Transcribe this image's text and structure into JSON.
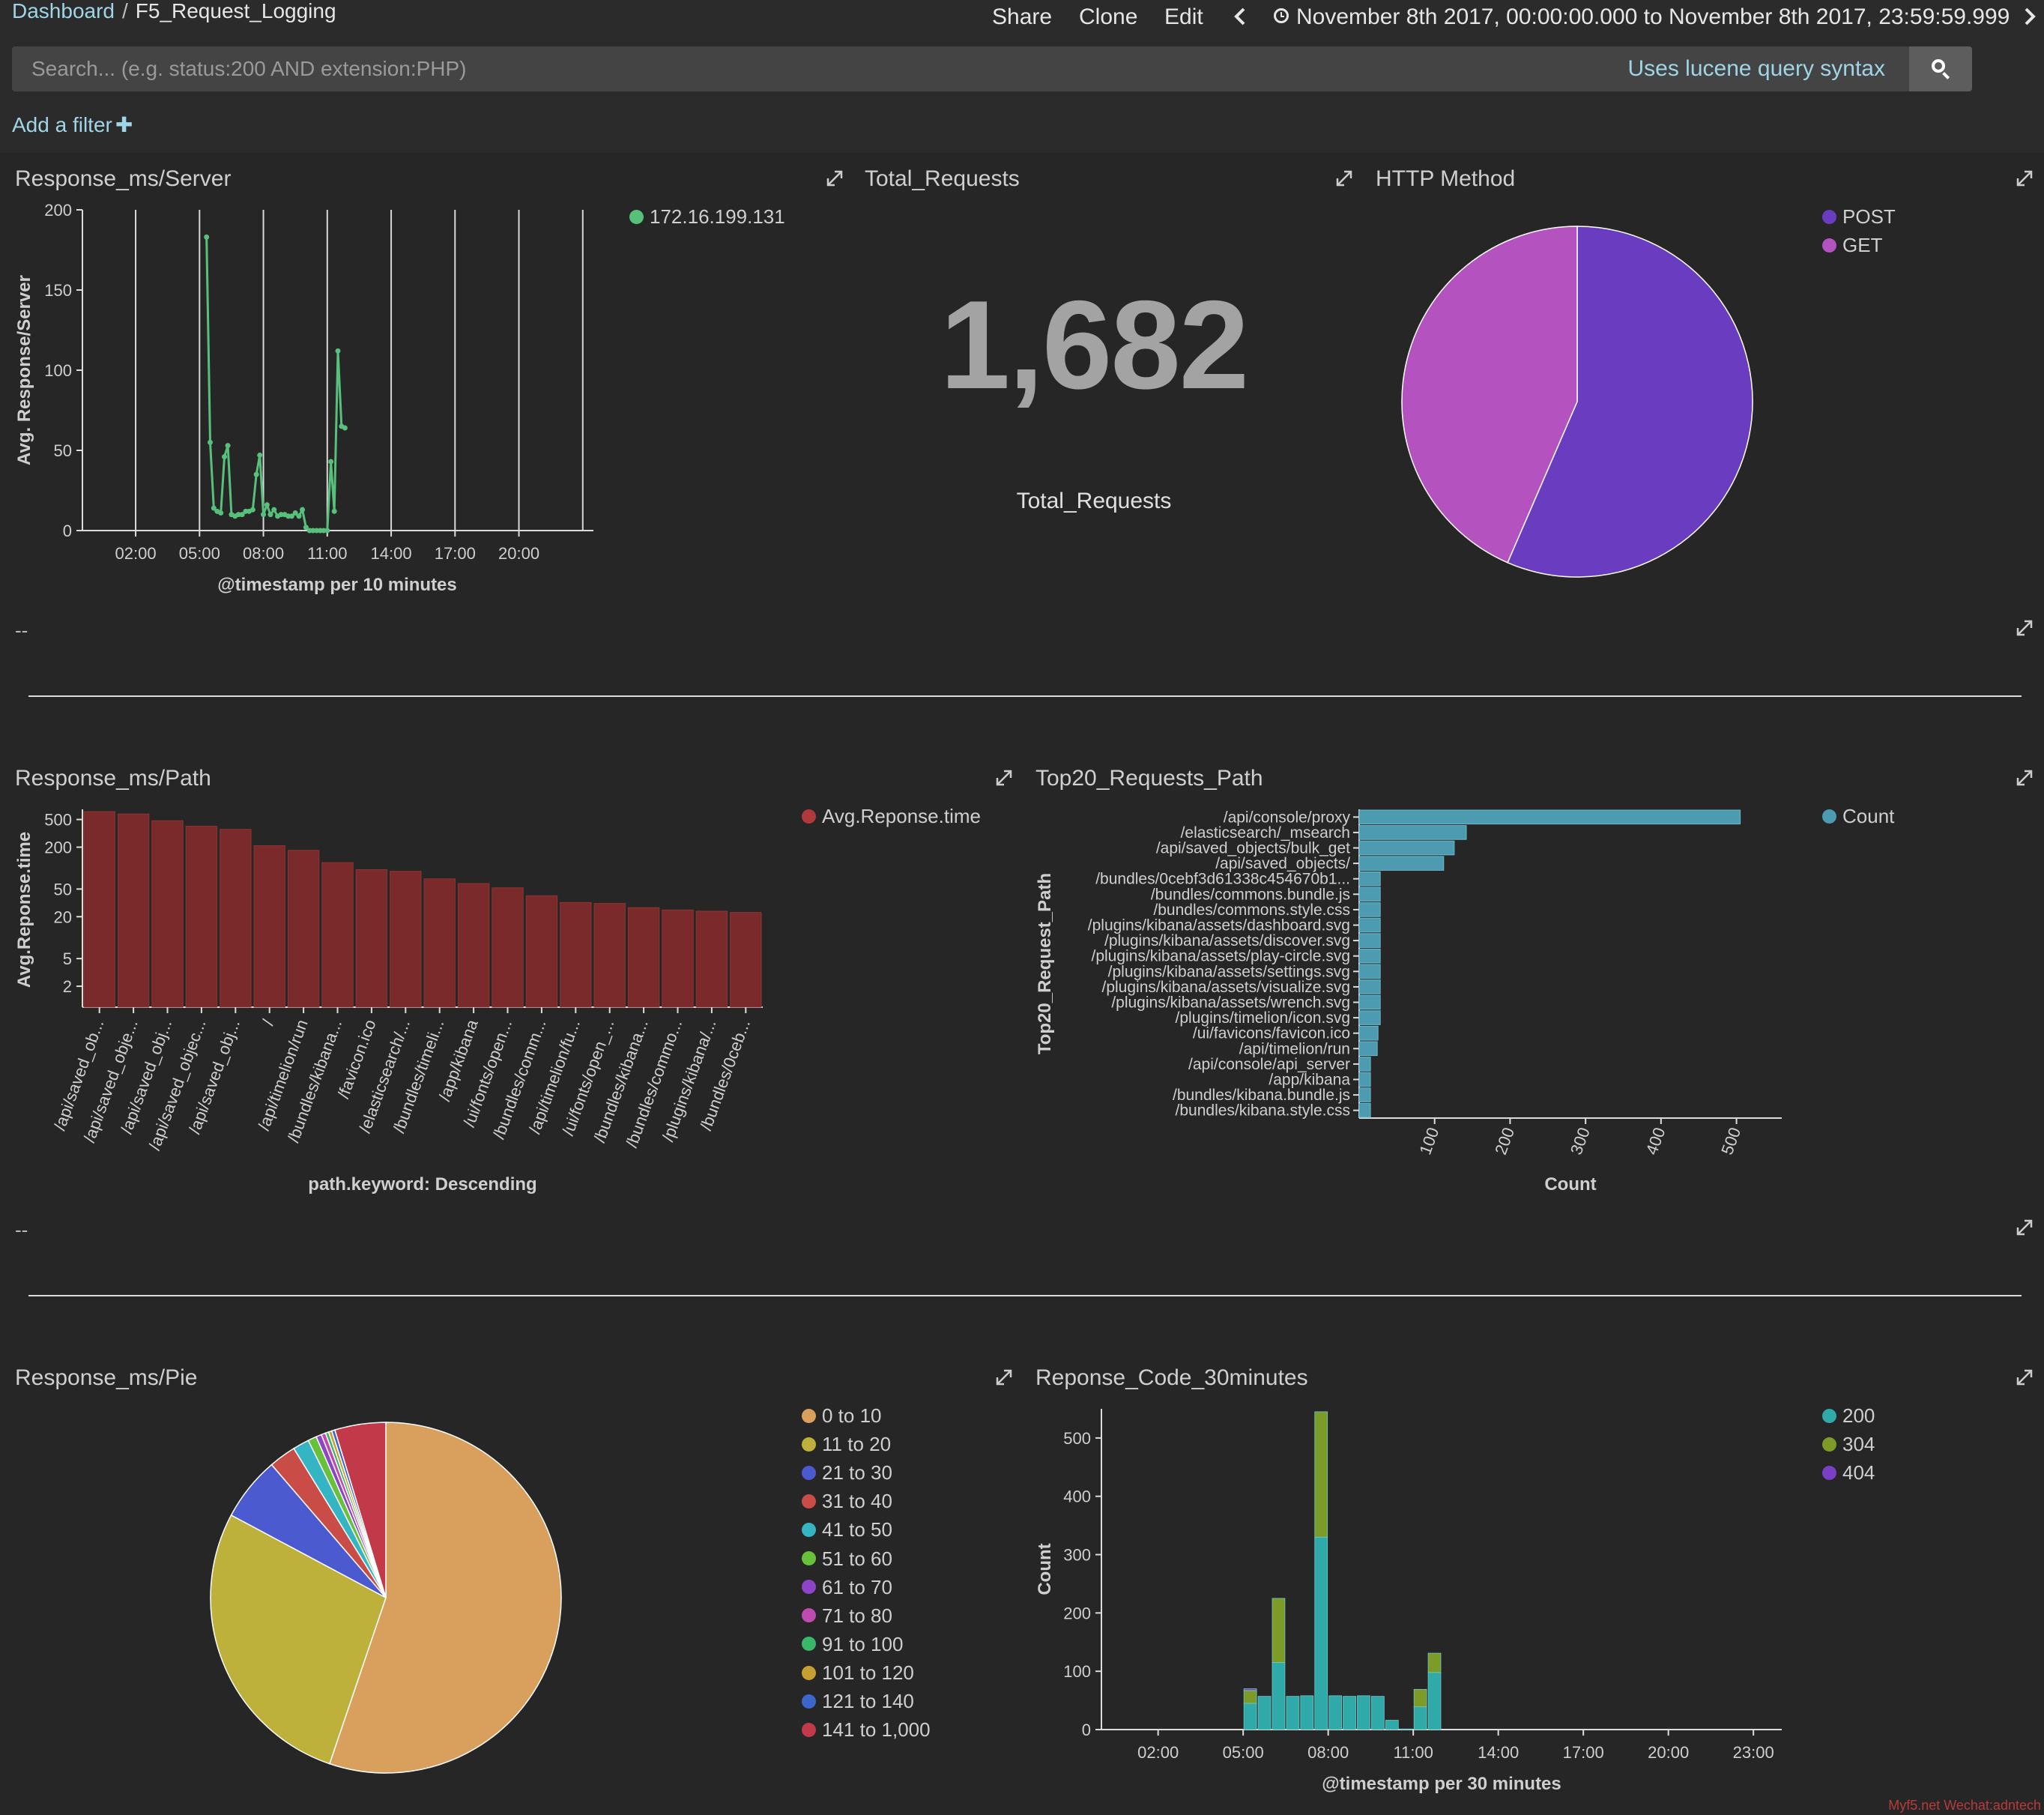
{
  "breadcrumb": {
    "root": "Dashboard",
    "current": "F5_Request_Logging"
  },
  "nav": {
    "share": "Share",
    "clone": "Clone",
    "edit": "Edit",
    "time_range": "November 8th 2017, 00:00:00.000 to November 8th 2017, 23:59:59.999"
  },
  "search": {
    "placeholder": "Search... (e.g. status:200 AND extension:PHP)",
    "syntax_link": "Uses lucene query syntax"
  },
  "filter": {
    "add_label": "Add a filter"
  },
  "panels": {
    "server": {
      "title": "Response_ms/Server",
      "footer": "--"
    },
    "total": {
      "title": "Total_Requests",
      "value": "1,682",
      "label": "Total_Requests"
    },
    "method": {
      "title": "HTTP Method"
    },
    "path": {
      "title": "Response_ms/Path",
      "footer": "--"
    },
    "top20": {
      "title": "Top20_Requests_Path"
    },
    "pie": {
      "title": "Response_ms/Pie"
    },
    "code": {
      "title": "Reponse_Code_30minutes"
    }
  },
  "chart_data": [
    {
      "id": "server",
      "type": "line",
      "xlabel": "@timestamp per 10 minutes",
      "ylabel": "Avg. Response/Server",
      "ylim": [
        0,
        200
      ],
      "yticks": [
        0,
        50,
        100,
        150,
        200
      ],
      "xticks": [
        "02:00",
        "05:00",
        "08:00",
        "11:00",
        "14:00",
        "17:00",
        "20:00"
      ],
      "grid": "vertical",
      "legend_position": "top-right",
      "series": [
        {
          "name": "172.16.199.131",
          "color": "#57c17b",
          "x": [
            5.33,
            5.5,
            5.67,
            5.83,
            6.0,
            6.17,
            6.33,
            6.5,
            6.67,
            6.83,
            7.0,
            7.17,
            7.33,
            7.5,
            7.67,
            7.83,
            8.0,
            8.17,
            8.33,
            8.5,
            8.67,
            8.83,
            9.0,
            9.17,
            9.33,
            9.5,
            9.67,
            9.83,
            10.0,
            10.17,
            10.33,
            10.5,
            10.67,
            10.83,
            11.0,
            11.17,
            11.33,
            11.5,
            11.67,
            11.83
          ],
          "y": [
            183,
            55,
            14,
            12,
            11,
            46,
            53,
            10,
            9,
            10,
            10,
            12,
            12,
            13,
            35,
            47,
            10,
            16,
            10,
            13,
            9,
            10,
            10,
            9,
            9,
            11,
            9,
            13,
            2,
            0,
            0,
            0,
            0,
            0,
            0,
            43,
            12,
            112,
            65,
            64
          ]
        }
      ]
    },
    {
      "id": "method",
      "type": "pie",
      "legend_position": "top-right",
      "labels": [
        "POST",
        "GET"
      ],
      "values": [
        56.5,
        43.5
      ],
      "colors": [
        "#6a3cbf",
        "#b452c0"
      ]
    },
    {
      "id": "path",
      "type": "bar",
      "scale": "log",
      "xlabel": "path.keyword: Descending",
      "ylabel": "Avg.Reponse.time",
      "ylim": [
        1,
        700
      ],
      "yticks": [
        2,
        5,
        20,
        50,
        200,
        500
      ],
      "categories": [
        "/api/saved_ob...",
        "/api/saved_obje...",
        "/api/saved_obj...",
        "/api/saved_objec...",
        "/api/saved_obj...",
        "/",
        "/api/timelion/run",
        "/bundles/kibana...",
        "/favicon.ico",
        "/elasticsearch/...",
        "/bundles/timeli...",
        "/app/kibana",
        "/ui/fonts/open...",
        "/bundles/comm...",
        "/api/timelion/fu...",
        "/ui/fonts/open_...",
        "/bundles/kibana...",
        "/bundles/commo...",
        "/plugins/kibana/...",
        "/bundles/0ceb..."
      ],
      "series": [
        {
          "name": "Avg.Reponse.time",
          "color": "#7a2a2a",
          "values": [
            650,
            600,
            480,
            400,
            360,
            210,
            180,
            120,
            95,
            90,
            70,
            60,
            52,
            40,
            32,
            31,
            27,
            25,
            24,
            23
          ]
        }
      ]
    },
    {
      "id": "top20",
      "type": "bar",
      "orientation": "horizontal",
      "xlabel": "Count",
      "ylabel": "Top20_Request_Path",
      "xlim": [
        0,
        560
      ],
      "xticks": [
        100,
        200,
        300,
        400,
        500
      ],
      "categories": [
        "/api/console/proxy",
        "/elasticsearch/_msearch",
        "/api/saved_objects/bulk_get",
        "/api/saved_objects/",
        "/bundles/0cebf3d61338c454670b1...",
        "/bundles/commons.bundle.js",
        "/bundles/commons.style.css",
        "/plugins/kibana/assets/dashboard.svg",
        "/plugins/kibana/assets/discover.svg",
        "/plugins/kibana/assets/play-circle.svg",
        "/plugins/kibana/assets/settings.svg",
        "/plugins/kibana/assets/visualize.svg",
        "/plugins/kibana/assets/wrench.svg",
        "/plugins/timelion/icon.svg",
        "/ui/favicons/favicon.ico",
        "/api/timelion/run",
        "/api/console/api_server",
        "/app/kibana",
        "/bundles/kibana.bundle.js",
        "/bundles/kibana.style.css"
      ],
      "series": [
        {
          "name": "Count",
          "color": "#4c9bb0",
          "values": [
            505,
            142,
            126,
            112,
            28,
            28,
            28,
            28,
            28,
            28,
            28,
            28,
            28,
            28,
            25,
            24,
            15,
            15,
            15,
            15
          ]
        }
      ]
    },
    {
      "id": "pie",
      "type": "pie",
      "labels": [
        "0 to 10",
        "11 to 20",
        "21 to 30",
        "31 to 40",
        "41 to 50",
        "51 to 60",
        "61 to 70",
        "71 to 80",
        "91 to 100",
        "101 to 120",
        "121 to 140",
        "141 to 1,000"
      ],
      "values": [
        55.2,
        27.6,
        5.9,
        2.5,
        1.5,
        0.8,
        0.5,
        0.4,
        0.3,
        0.3,
        0.3,
        4.7
      ],
      "colors": [
        "#d99f5d",
        "#bdb03b",
        "#4b5bcf",
        "#c94c47",
        "#35b4c4",
        "#67c23a",
        "#8e44c9",
        "#c04bb0",
        "#3ab86a",
        "#c8a032",
        "#3c66cc",
        "#c23a4a"
      ]
    },
    {
      "id": "code",
      "type": "bar",
      "stacked": true,
      "xlabel": "@timestamp per 30 minutes",
      "ylabel": "Count",
      "ylim": [
        0,
        550
      ],
      "yticks": [
        0,
        100,
        200,
        300,
        400,
        500
      ],
      "xticks": [
        "02:00",
        "05:00",
        "08:00",
        "11:00",
        "14:00",
        "17:00",
        "20:00",
        "23:00"
      ],
      "x": [
        "05:00",
        "05:30",
        "06:00",
        "06:30",
        "07:00",
        "07:30",
        "08:00",
        "08:30",
        "09:00",
        "09:30",
        "10:00",
        "10:30",
        "11:00",
        "11:30"
      ],
      "series": [
        {
          "name": "200",
          "color": "#30a9a9",
          "values": [
            45,
            57,
            115,
            57,
            58,
            330,
            58,
            57,
            58,
            57,
            16,
            1,
            39,
            98
          ]
        },
        {
          "name": "304",
          "color": "#7d9b27",
          "values": [
            22,
            0,
            110,
            0,
            0,
            215,
            0,
            0,
            0,
            0,
            0,
            0,
            30,
            33
          ]
        },
        {
          "name": "404",
          "color": "#7a3fc4",
          "values": [
            3,
            0,
            0,
            0,
            0,
            0,
            0,
            0,
            0,
            0,
            0,
            0,
            0,
            0
          ]
        }
      ]
    }
  ],
  "watermark": "Myf5.net Wechat:adntech"
}
